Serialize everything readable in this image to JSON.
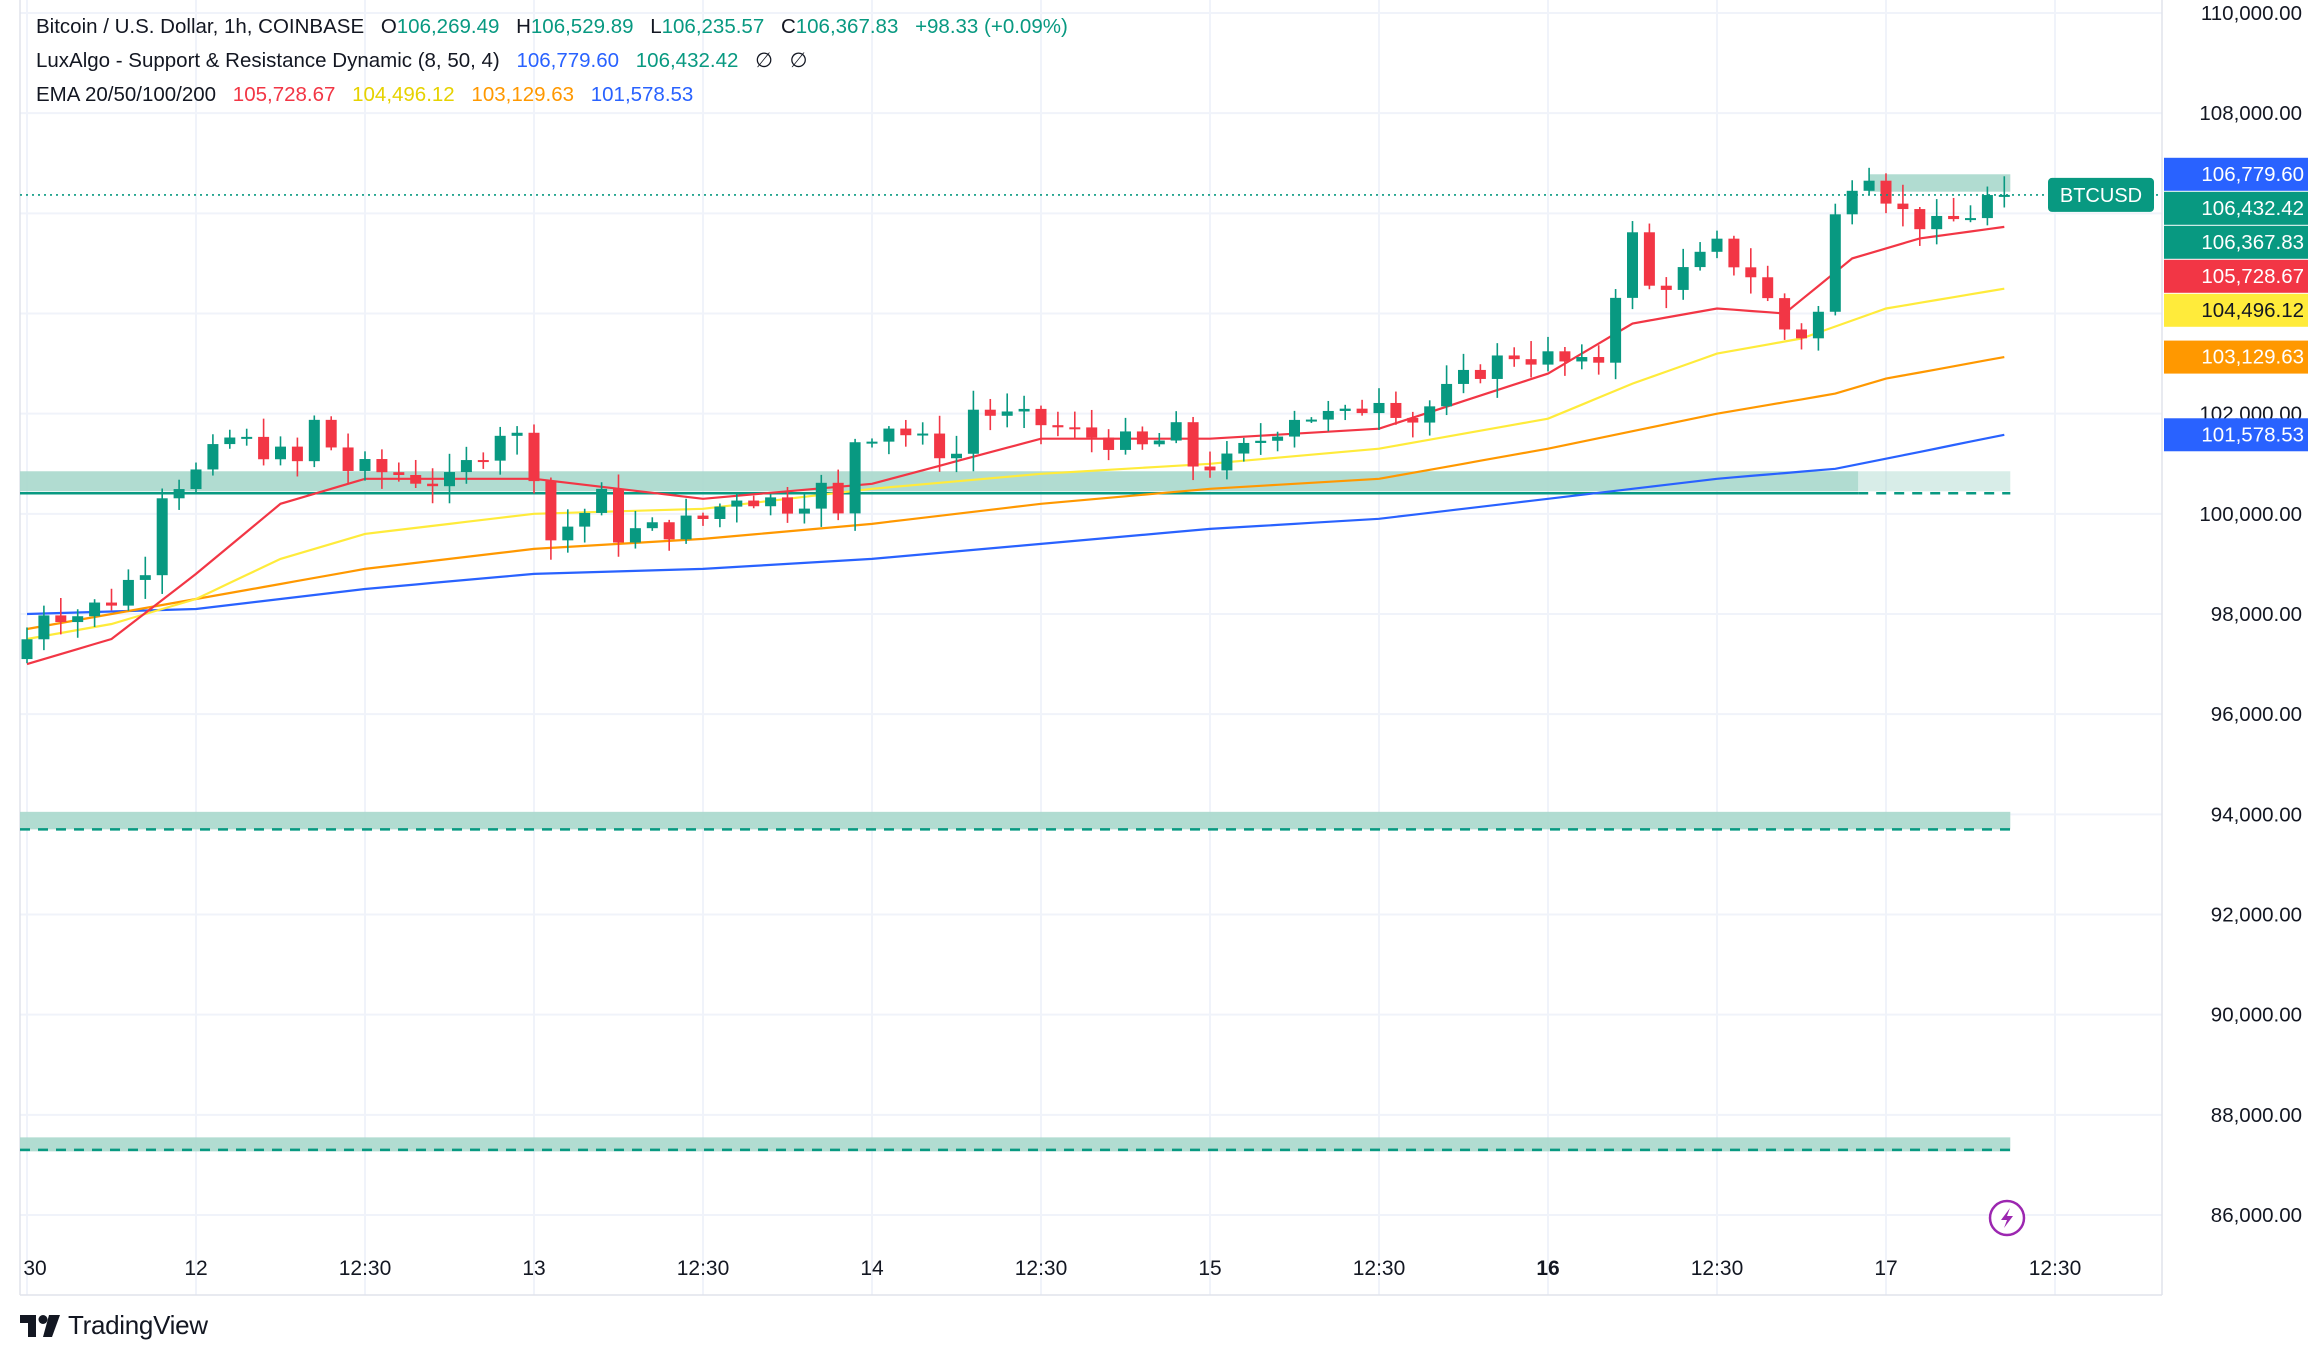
{
  "legend": {
    "symbol_line": {
      "symbol": "Bitcoin / U.S. Dollar, 1h, COINBASE",
      "open_label": "O",
      "open": "106,269.49",
      "high_label": "H",
      "high": "106,529.89",
      "low_label": "L",
      "low": "106,235.57",
      "close_label": "C",
      "close": "106,367.83",
      "change": "+98.33 (+0.09%)"
    },
    "luxalgo_line": {
      "name": "LuxAlgo - Support & Resistance Dynamic (8, 50, 4)",
      "value_1": "106,779.60",
      "value_2": "106,432.42",
      "empty_1": "∅",
      "empty_2": "∅"
    },
    "ema_line": {
      "name": "EMA 20/50/100/200",
      "ema20": "105,728.67",
      "ema50": "104,496.12",
      "ema100": "103,129.63",
      "ema200": "101,578.53"
    }
  },
  "colors": {
    "up": "#089981",
    "down": "#f23645",
    "ema20": "#f23645",
    "ema50": "#ffeb3b",
    "ema100": "#ff9800",
    "ema200": "#2962ff",
    "zone": "#a8d8cc",
    "zone_line": "#089981",
    "luxalgo_blue": "#2962ff",
    "luxalgo_green": "#089981",
    "grid": "#f0f3fa",
    "text": "#131722",
    "price_line": "#089981"
  },
  "chart_data": {
    "type": "candlestick",
    "symbol": "BTCUSD",
    "timeframe": "1h",
    "y_axis_labels": [
      "110,000.00",
      "108,000.00",
      "106,000.00",
      "104,000.00",
      "102,000.00",
      "100,000.00",
      "98,000.00",
      "96,000.00",
      "94,000.00",
      "92,000.00",
      "90,000.00",
      "88,000.00",
      "86,000.00"
    ],
    "y_axis_values": [
      110000,
      108000,
      106000,
      104000,
      102000,
      100000,
      98000,
      96000,
      94000,
      92000,
      90000,
      88000,
      86000
    ],
    "ylim": [
      84900,
      110300
    ],
    "x_axis_labels": [
      {
        "label": "30",
        "bar": 0,
        "bold": false
      },
      {
        "label": "12",
        "bar": 10,
        "bold": false
      },
      {
        "label": "12:30",
        "bar": 20,
        "bold": false
      },
      {
        "label": "13",
        "bar": 30,
        "bold": false
      },
      {
        "label": "12:30",
        "bar": 40,
        "bold": false
      },
      {
        "label": "14",
        "bar": 50,
        "bold": false
      },
      {
        "label": "12:30",
        "bar": 60,
        "bold": false
      },
      {
        "label": "15",
        "bar": 70,
        "bold": false
      },
      {
        "label": "12:30",
        "bar": 80,
        "bold": false
      },
      {
        "label": "16",
        "bar": 90,
        "bold": true
      },
      {
        "label": "12:30",
        "bar": 100,
        "bold": false
      },
      {
        "label": "17",
        "bar": 110,
        "bold": false
      },
      {
        "label": "12:30",
        "bar": 120,
        "bold": false
      }
    ],
    "bar_count": 118,
    "anchors": [
      [
        0,
        97500
      ],
      [
        1,
        98100
      ],
      [
        3,
        98000
      ],
      [
        5,
        98300
      ],
      [
        7,
        99000
      ],
      [
        8,
        100500
      ],
      [
        10,
        100800
      ],
      [
        12,
        101500
      ],
      [
        14,
        101300
      ],
      [
        16,
        101000
      ],
      [
        17,
        101800
      ],
      [
        19,
        100900
      ],
      [
        22,
        100800
      ],
      [
        25,
        100600
      ],
      [
        27,
        101300
      ],
      [
        28,
        101700
      ],
      [
        29,
        101500
      ],
      [
        30,
        100900
      ],
      [
        31,
        99500
      ],
      [
        34,
        100300
      ],
      [
        35,
        99600
      ],
      [
        38,
        99700
      ],
      [
        40,
        99900
      ],
      [
        42,
        100400
      ],
      [
        45,
        100200
      ],
      [
        47,
        100500
      ],
      [
        48,
        99900
      ],
      [
        49,
        101500
      ],
      [
        51,
        101800
      ],
      [
        53,
        101400
      ],
      [
        55,
        101200
      ],
      [
        56,
        102100
      ],
      [
        58,
        101900
      ],
      [
        60,
        101800
      ],
      [
        62,
        101600
      ],
      [
        64,
        101500
      ],
      [
        66,
        101300
      ],
      [
        68,
        101600
      ],
      [
        69,
        101000
      ],
      [
        71,
        101000
      ],
      [
        73,
        101500
      ],
      [
        75,
        102000
      ],
      [
        78,
        101900
      ],
      [
        80,
        102400
      ],
      [
        82,
        101900
      ],
      [
        84,
        102400
      ],
      [
        86,
        102900
      ],
      [
        88,
        103200
      ],
      [
        90,
        103100
      ],
      [
        92,
        102900
      ],
      [
        93,
        103100
      ],
      [
        94,
        104500
      ],
      [
        95,
        105500
      ],
      [
        96,
        104500
      ],
      [
        98,
        104800
      ],
      [
        100,
        105300
      ],
      [
        102,
        104800
      ],
      [
        104,
        103700
      ],
      [
        105,
        103600
      ],
      [
        106,
        104000
      ],
      [
        107,
        105900
      ],
      [
        108,
        106700
      ],
      [
        109,
        106900
      ],
      [
        110,
        106400
      ],
      [
        111,
        106000
      ],
      [
        113,
        105700
      ],
      [
        115,
        106000
      ],
      [
        116,
        106300
      ],
      [
        117,
        106368
      ]
    ],
    "ema": {
      "ema20": {
        "anchors": [
          [
            0,
            97000
          ],
          [
            5,
            97500
          ],
          [
            10,
            98800
          ],
          [
            15,
            100200
          ],
          [
            20,
            100700
          ],
          [
            30,
            100700
          ],
          [
            40,
            100300
          ],
          [
            50,
            100600
          ],
          [
            60,
            101500
          ],
          [
            70,
            101500
          ],
          [
            80,
            101700
          ],
          [
            90,
            102800
          ],
          [
            95,
            103800
          ],
          [
            100,
            104100
          ],
          [
            104,
            104000
          ],
          [
            108,
            105100
          ],
          [
            112,
            105500
          ],
          [
            117,
            105729
          ]
        ],
        "last": "105,728.67"
      },
      "ema50": {
        "anchors": [
          [
            0,
            97500
          ],
          [
            5,
            97800
          ],
          [
            10,
            98300
          ],
          [
            15,
            99100
          ],
          [
            20,
            99600
          ],
          [
            30,
            100000
          ],
          [
            40,
            100100
          ],
          [
            50,
            100500
          ],
          [
            60,
            100800
          ],
          [
            70,
            101000
          ],
          [
            80,
            101300
          ],
          [
            90,
            101900
          ],
          [
            95,
            102600
          ],
          [
            100,
            103200
          ],
          [
            105,
            103500
          ],
          [
            110,
            104100
          ],
          [
            117,
            104496
          ]
        ],
        "last": "104,496.12"
      },
      "ema100": {
        "anchors": [
          [
            0,
            97700
          ],
          [
            10,
            98300
          ],
          [
            20,
            98900
          ],
          [
            30,
            99300
          ],
          [
            40,
            99500
          ],
          [
            50,
            99800
          ],
          [
            60,
            100200
          ],
          [
            70,
            100500
          ],
          [
            80,
            100700
          ],
          [
            90,
            101300
          ],
          [
            100,
            102000
          ],
          [
            107,
            102400
          ],
          [
            110,
            102700
          ],
          [
            117,
            103130
          ]
        ],
        "last": "103,129.63"
      },
      "ema200": {
        "anchors": [
          [
            0,
            98000
          ],
          [
            10,
            98100
          ],
          [
            20,
            98500
          ],
          [
            30,
            98800
          ],
          [
            40,
            98900
          ],
          [
            50,
            99100
          ],
          [
            60,
            99400
          ],
          [
            70,
            99700
          ],
          [
            80,
            99900
          ],
          [
            90,
            100300
          ],
          [
            100,
            100700
          ],
          [
            107,
            100900
          ],
          [
            110,
            101100
          ],
          [
            117,
            101579
          ]
        ],
        "last": "101,578.53"
      }
    },
    "zones": [
      {
        "top": 100850,
        "bottom": 100450,
        "start_bar": 0,
        "end_bar": 108,
        "extend_to_bar": 117,
        "dash": 100450
      },
      {
        "top": 94050,
        "bottom": 93700,
        "start_bar": 0,
        "end_bar": 117,
        "extend_to_bar": 117,
        "dash": 93700
      },
      {
        "top": 87550,
        "bottom": 87300,
        "start_bar": 0,
        "end_bar": 117,
        "extend_to_bar": 117,
        "dash": 87300
      },
      {
        "top": 106780,
        "bottom": 106432,
        "start_bar": 109,
        "end_bar": 117,
        "extend_to_bar": 117,
        "dash": null
      }
    ],
    "current_price": 106367.83,
    "price_tags": [
      {
        "label": "106,779.60",
        "value": 106779.6,
        "color": "#2962ff",
        "text_color": "#ffffff"
      },
      {
        "label": "106,432.42",
        "value": 106432.42,
        "color": "#089981",
        "text_color": "#ffffff"
      },
      {
        "label": "106,367.83",
        "value": 106367.83,
        "color": "#089981",
        "text_color": "#ffffff"
      },
      {
        "label": "105,728.67",
        "value": 105728.67,
        "color": "#f23645",
        "text_color": "#ffffff"
      },
      {
        "label": "104,496.12",
        "value": 104496.12,
        "color": "#ffeb3b",
        "text_color": "#131722"
      },
      {
        "label": "103,129.63",
        "value": 103129.63,
        "color": "#ff9800",
        "text_color": "#ffffff"
      },
      {
        "label": "101,578.53",
        "value": 101578.53,
        "color": "#2962ff",
        "text_color": "#ffffff"
      }
    ],
    "symbol_tag": "BTCUSD"
  },
  "branding": {
    "name": "TradingView"
  },
  "icons": {
    "lightning": "lightning-icon",
    "logo": "tradingview-logo-icon"
  }
}
